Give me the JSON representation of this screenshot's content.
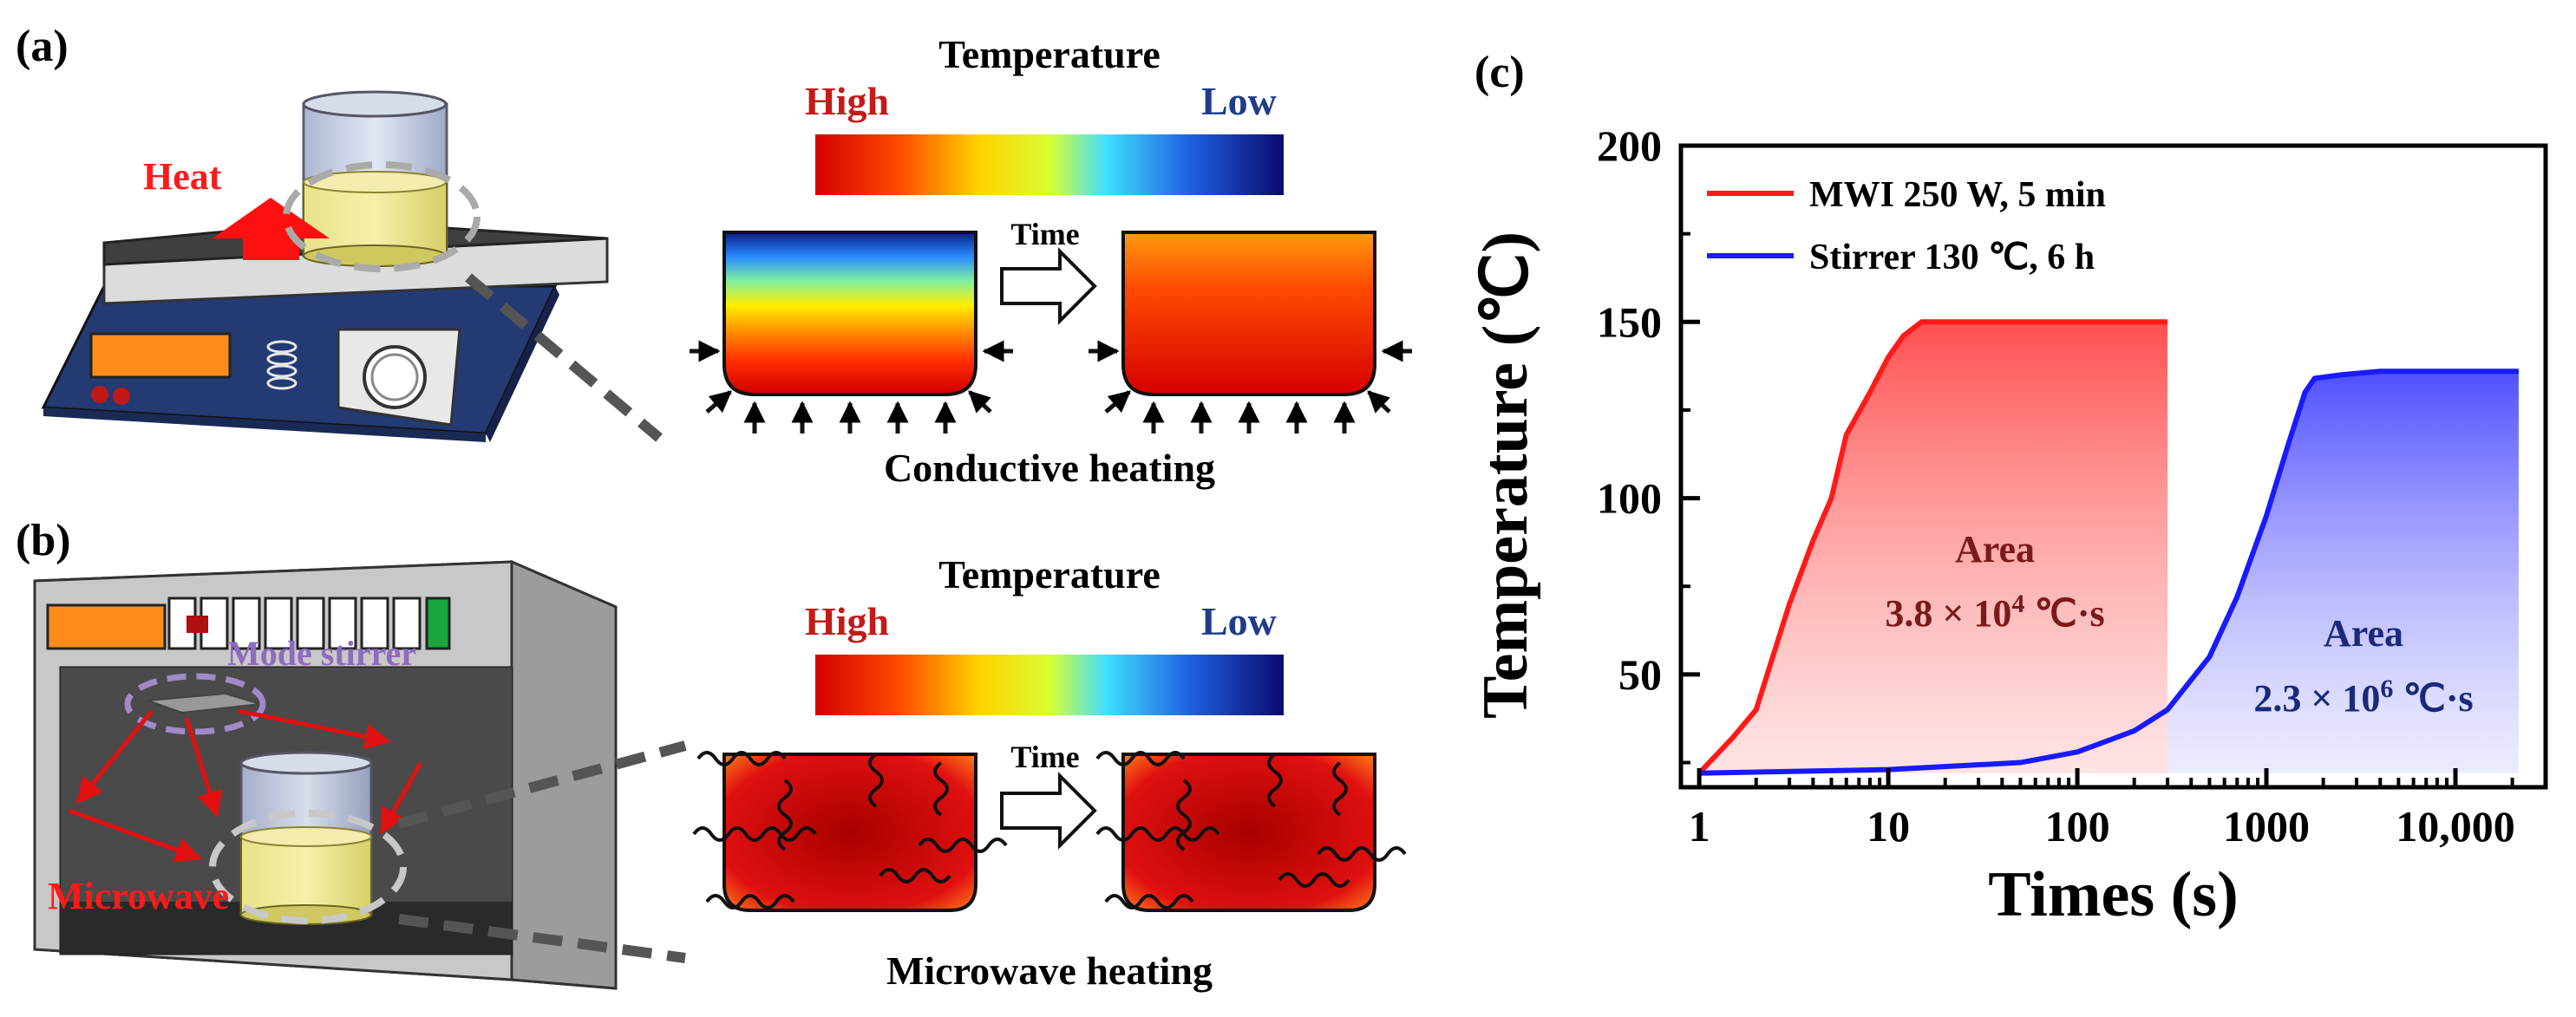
{
  "panels": {
    "a": {
      "label": "(a)",
      "heat_label": "Heat",
      "colorbar_title": "Temperature",
      "colorbar_high": "High",
      "colorbar_low": "Low",
      "time_label": "Time",
      "caption": "Conductive heating"
    },
    "b": {
      "label": "(b)",
      "mode_stirrer_label": "Mode stirrer",
      "microwave_label": "Microwave",
      "colorbar_title": "Temperature",
      "colorbar_high": "High",
      "colorbar_low": "Low",
      "time_label": "Time",
      "caption": "Microwave heating"
    },
    "c": {
      "label": "(c)"
    }
  },
  "colors": {
    "high_text": "#c41a1a",
    "low_text": "#1f3b8c",
    "red_series": "#ff1a1a",
    "blue_series": "#1a1aff",
    "stirrer_label": "#8e6bbf",
    "microwave_text": "#ff1a1a"
  },
  "chart_data": {
    "type": "line",
    "xscale": "log",
    "xlabel": "Times (s)",
    "ylabel": "Temperature (℃)",
    "xlim": [
      0.8,
      30000
    ],
    "ylim": [
      18,
      200
    ],
    "xticks": [
      1,
      10,
      100,
      1000,
      10000
    ],
    "xtick_labels": [
      "1",
      "10",
      "100",
      "1000",
      "10,000"
    ],
    "yticks": [
      50,
      100,
      150,
      200
    ],
    "ytick_labels": [
      "50",
      "100",
      "150",
      "200"
    ],
    "legend_position": "top-left",
    "series": [
      {
        "name": "MWI 250 W, 5 min",
        "color": "#ff1a1a",
        "fill": true,
        "x": [
          1,
          1.5,
          2,
          3,
          4,
          5,
          6,
          8,
          10,
          12,
          15,
          20,
          50,
          100,
          200,
          300
        ],
        "y": [
          22,
          32,
          40,
          70,
          88,
          100,
          118,
          130,
          140,
          146,
          150,
          150,
          150,
          150,
          150,
          150
        ]
      },
      {
        "name": "Stirrer 130 ℃, 6 h",
        "color": "#1a1aff",
        "fill": true,
        "fill_from_x": 300,
        "x": [
          1,
          10,
          50,
          100,
          200,
          300,
          500,
          700,
          1000,
          1300,
          1600,
          1800,
          2500,
          4000,
          8000,
          21600
        ],
        "y": [
          22,
          23,
          25,
          28,
          34,
          40,
          55,
          72,
          95,
          115,
          130,
          134,
          135,
          136,
          136,
          136
        ]
      }
    ],
    "annotations": [
      {
        "title": "Area",
        "base": "3.8 × 10",
        "exp": "4",
        "unit": " ℃·s",
        "color": "#7a1a1a"
      },
      {
        "title": "Area",
        "base": "2.3 × 10",
        "exp": "6",
        "unit": " ℃·s",
        "color": "#1a2a7a"
      }
    ]
  }
}
